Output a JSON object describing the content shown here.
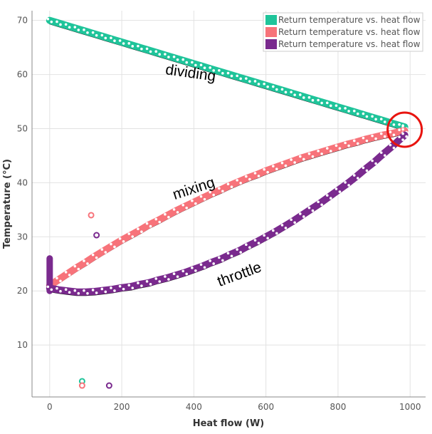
{
  "chart_data": {
    "type": "scatter",
    "title": "",
    "xlabel": "Heat flow (W)",
    "ylabel": "Temperature (°C)",
    "xlim": [
      -49,
      1043
    ],
    "ylim": [
      0.4,
      71.8
    ],
    "xticks": [
      0,
      200,
      400,
      600,
      800,
      1000
    ],
    "yticks": [
      10,
      20,
      30,
      40,
      50,
      60,
      70
    ],
    "grid": true,
    "legend_position": "top-right",
    "x": [
      0,
      25,
      50,
      75,
      100,
      125,
      150,
      175,
      200,
      225,
      250,
      275,
      300,
      325,
      350,
      375,
      400,
      425,
      450,
      475,
      500,
      525,
      550,
      575,
      600,
      625,
      650,
      675,
      700,
      725,
      750,
      775,
      800,
      825,
      850,
      875,
      900,
      925,
      950,
      975,
      985
    ],
    "series": [
      {
        "name": "Return temperature vs. heat flow",
        "color": "#1fc49a",
        "annotation": "dividing",
        "y": [
          70,
          69.5,
          69,
          68.5,
          68,
          67.5,
          67,
          66.5,
          66,
          65.5,
          65,
          64.5,
          64,
          63.5,
          63,
          62.5,
          62,
          61.5,
          61,
          60.5,
          60,
          59.5,
          59,
          58.5,
          58,
          57.5,
          57,
          56.5,
          56,
          55.5,
          55,
          54.5,
          54,
          53.5,
          53,
          52.5,
          52,
          51.5,
          51,
          50.5,
          50.3
        ],
        "outliers": [
          [
            90,
            3.3
          ]
        ]
      },
      {
        "name": "Return temperature vs. heat flow",
        "color": "#f7737a",
        "annotation": "mixing",
        "y": [
          21,
          22.1,
          23.2,
          24.3,
          25.3,
          26.4,
          27.4,
          28.4,
          29.4,
          30.3,
          31.2,
          32.2,
          33.0,
          33.9,
          34.8,
          35.6,
          36.4,
          37.2,
          38.0,
          38.7,
          39.5,
          40.2,
          40.9,
          41.5,
          42.2,
          42.8,
          43.4,
          44.0,
          44.6,
          45.1,
          45.6,
          46.1,
          46.6,
          47.1,
          47.5,
          48.0,
          48.4,
          48.8,
          49.1,
          49.5,
          49.6
        ],
        "outliers": [
          [
            115,
            34
          ],
          [
            90,
            2.5
          ]
        ]
      },
      {
        "name": "Return temperature vs. heat flow",
        "color": "#7a2a8e",
        "annotation": "throttle",
        "y": [
          20.5,
          20.2,
          20.0,
          19.8,
          19.8,
          19.9,
          20.1,
          20.3,
          20.6,
          20.8,
          21.2,
          21.5,
          22.0,
          22.4,
          22.9,
          23.4,
          24.0,
          24.6,
          25.3,
          25.9,
          26.7,
          27.4,
          28.3,
          29.1,
          30.0,
          30.9,
          31.9,
          32.9,
          34.0,
          35.1,
          36.2,
          37.4,
          38.6,
          39.8,
          41.1,
          42.5,
          43.8,
          45.3,
          46.7,
          48.2,
          48.8
        ],
        "outliers": [
          [
            130,
            30.3
          ],
          [
            165,
            2.5
          ]
        ],
        "vertical_segment": {
          "x": 0,
          "y": [
            20,
            26
          ]
        }
      }
    ],
    "highlight": {
      "shape": "circle",
      "color": "#e8140f",
      "x": 985,
      "y": 49.8
    }
  }
}
